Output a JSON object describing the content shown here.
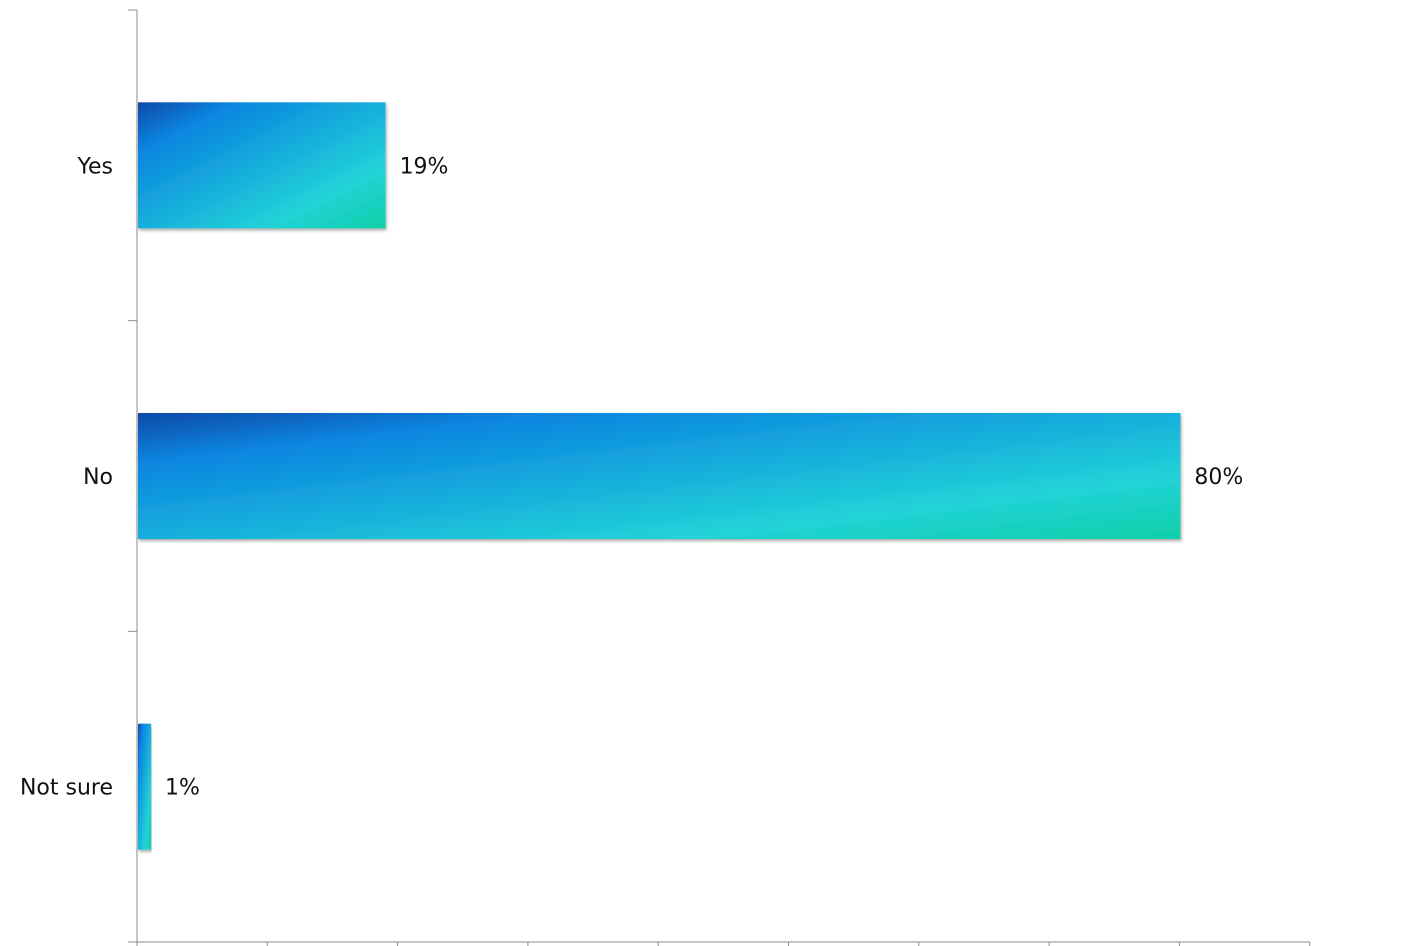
{
  "chart_data": {
    "type": "bar",
    "orientation": "horizontal",
    "categories": [
      "Yes",
      "No",
      "Not sure"
    ],
    "values": [
      19,
      80,
      1
    ],
    "value_labels": [
      "19%",
      "80%",
      "1%"
    ],
    "unit": "%",
    "xlim": [
      0,
      90
    ],
    "x_tick_step": 10,
    "title": "",
    "xlabel": "",
    "ylabel": "",
    "grid": false,
    "legend": "none",
    "bar_gradient": [
      "#0a4aa8",
      "#0a86e0",
      "#22d2d8",
      "#0fd0a8"
    ]
  }
}
